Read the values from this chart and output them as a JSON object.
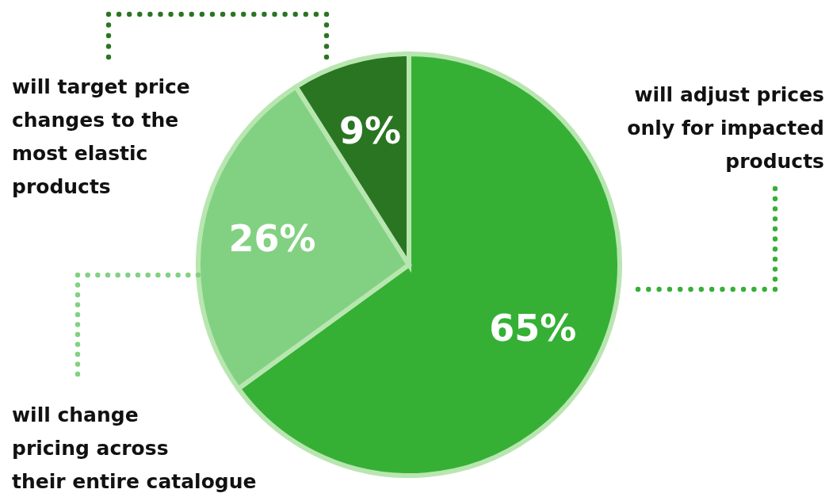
{
  "chart_data": {
    "type": "pie",
    "categories": [
      "will adjust prices\nonly for impacted\nproducts",
      "will change\npricing across\ntheir entire catalogue",
      "will target price\nchanges to the\nmost elastic\nproducts"
    ],
    "values": [
      65,
      26,
      9
    ],
    "colors": [
      "#35b035",
      "#82d182",
      "#2a7522"
    ],
    "value_labels": [
      "65%",
      "26%",
      "9%"
    ],
    "legend": "left"
  }
}
